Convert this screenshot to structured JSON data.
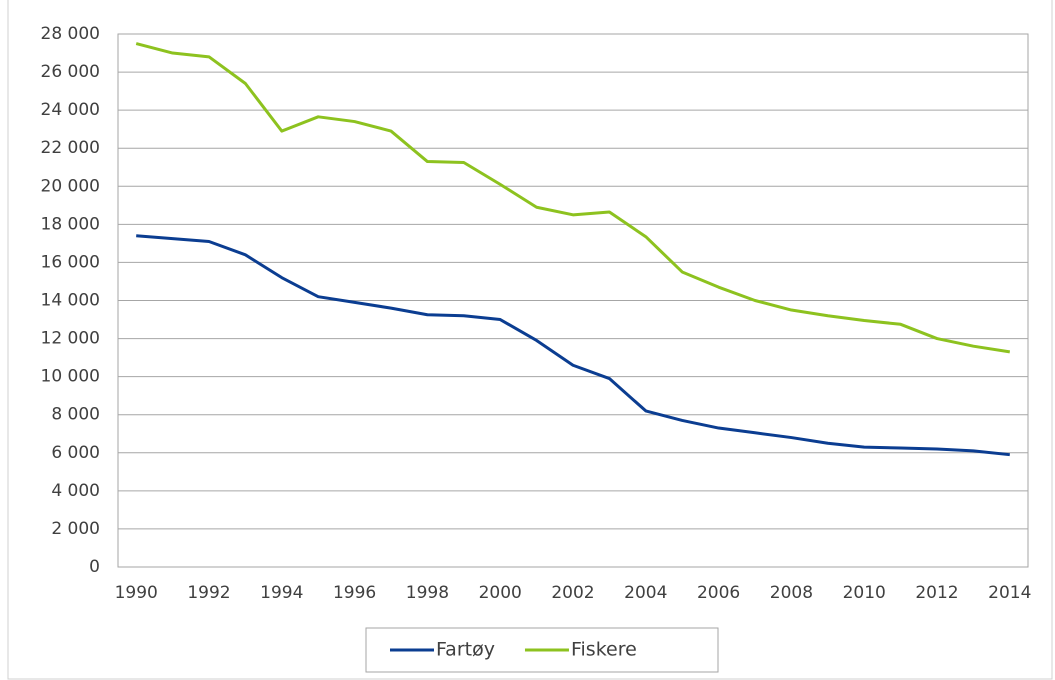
{
  "chart_data": {
    "type": "line",
    "categories": [
      "1990",
      null,
      "1992",
      null,
      "1994",
      null,
      "1996",
      null,
      "1998",
      null,
      "2000",
      null,
      "2002",
      null,
      "2004",
      null,
      "2006",
      null,
      "2008",
      null,
      "2010",
      null,
      "2012",
      null,
      "2014"
    ],
    "series": [
      {
        "name": "Fartøy",
        "color": "#0b3d91",
        "values": [
          17400,
          17250,
          17100,
          16400,
          15200,
          14200,
          13900,
          13600,
          13250,
          13200,
          13000,
          11900,
          10600,
          9900,
          8200,
          7700,
          7300,
          7050,
          6800,
          6500,
          6300,
          6250,
          6200,
          6100,
          5900
        ]
      },
      {
        "name": "Fiskere",
        "color": "#8dc21f",
        "values": [
          27500,
          27000,
          26800,
          25400,
          22900,
          23650,
          23400,
          22900,
          21300,
          21250,
          20100,
          18900,
          18500,
          18650,
          17350,
          15500,
          14700,
          14000,
          13500,
          13200,
          12950,
          12750,
          12000,
          11600,
          11300
        ]
      }
    ],
    "ylim": [
      0,
      28000
    ],
    "yticks": [
      0,
      {
        "value": 2000,
        "label": "2 000"
      },
      {
        "value": 4000,
        "label": "4 000"
      },
      {
        "value": 6000,
        "label": "6 000"
      },
      {
        "value": 8000,
        "label": "8 000"
      },
      {
        "value": 10000,
        "label": "10 000"
      },
      {
        "value": 12000,
        "label": "12 000"
      },
      {
        "value": 14000,
        "label": "14 000"
      },
      {
        "value": 16000,
        "label": "16 000"
      },
      {
        "value": 18000,
        "label": "18 000"
      },
      {
        "value": 20000,
        "label": "20 000"
      },
      {
        "value": 22000,
        "label": "22 000"
      },
      {
        "value": 24000,
        "label": "24 000"
      },
      {
        "value": 26000,
        "label": "26 000"
      },
      {
        "value": 28000,
        "label": "28 000"
      }
    ],
    "grid": true,
    "legend": "bottom"
  }
}
